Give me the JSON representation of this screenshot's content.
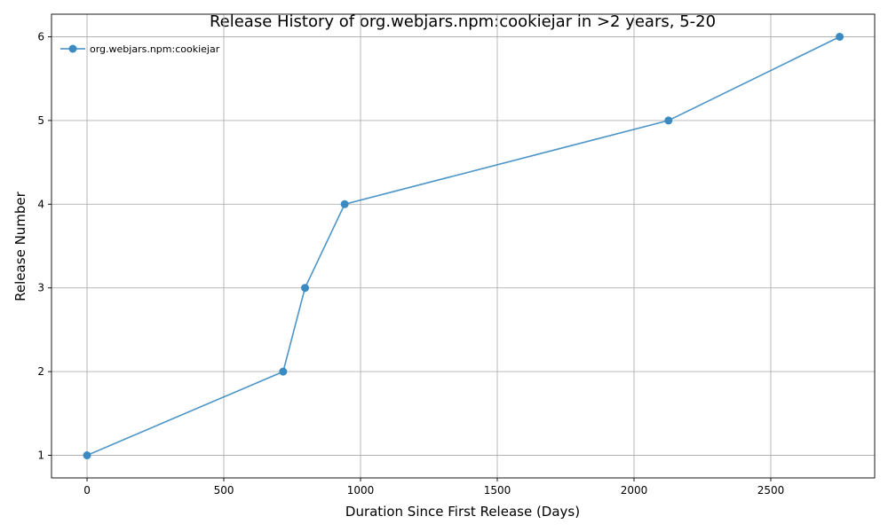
{
  "chart_data": {
    "type": "line",
    "title": "Release History of org.webjars.npm:cookiejar in >2 years, 5-20",
    "xlabel": "Duration Since First Release (Days)",
    "ylabel": "Release Number",
    "xlim": [
      -130,
      2880
    ],
    "ylim": [
      0.73,
      6.27
    ],
    "xticks": [
      0,
      500,
      1000,
      1500,
      2000,
      2500
    ],
    "yticks": [
      1,
      2,
      3,
      4,
      5,
      6
    ],
    "grid": true,
    "legend_position": "top-left",
    "series": [
      {
        "name": "org.webjars.npm:cookiejar",
        "color": "#3b8bc2",
        "marker": "circle",
        "x": [
          0,
          717,
          797,
          942,
          2126,
          2752
        ],
        "y": [
          1,
          2,
          3,
          4,
          5,
          6
        ]
      }
    ]
  }
}
